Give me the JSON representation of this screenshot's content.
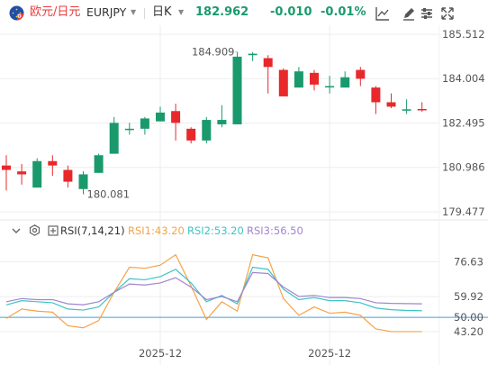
{
  "header": {
    "symbol_name": "欧元/日元",
    "symbol_code": "EURJPY",
    "period": "日K",
    "last_price": "182.962",
    "change": "-0.010",
    "change_pct": "-0.01%",
    "change_color": "#1a9a6c",
    "tools": [
      {
        "name": "indicator-tool",
        "icon": "chart-line-icon"
      },
      {
        "name": "draw-tool",
        "icon": "pen-icon"
      },
      {
        "name": "settings-tool",
        "icon": "sliders-icon"
      },
      {
        "name": "fullscreen-tool",
        "icon": "expand-icon"
      }
    ]
  },
  "price_axis": [
    "185.512",
    "184.004",
    "182.495",
    "180.986",
    "179.477"
  ],
  "annotations": {
    "high": "184.909",
    "low": "180.081"
  },
  "rsi": {
    "collapse_icon": "chevron-down-icon",
    "settings_icon": "gear-icon",
    "label": "RSI(7,14,21)",
    "rsi1_label": "RSI1:43.20",
    "rsi2_label": "RSI2:53.20",
    "rsi3_label": "RSI3:56.50",
    "axis": [
      "76.63",
      "59.92",
      "43.20"
    ],
    "mid_label": "50.00"
  },
  "x_axis": [
    "2025-12",
    "2025-12"
  ],
  "colors": {
    "up": "#1a9a6c",
    "down": "#e8282b",
    "rsi1": "#f5a34a",
    "rsi2": "#3ec3c5",
    "rsi3": "#a284cf",
    "mid_line": "#3aa0e8",
    "grid": "#eeeeee"
  },
  "chart_data": [
    {
      "type": "candlestick",
      "title": "",
      "ylim": [
        179.477,
        185.512
      ],
      "y_ticks": [
        185.512,
        184.004,
        182.495,
        180.986,
        179.477
      ],
      "annotated_high": 184.909,
      "annotated_low": 180.081,
      "candles": [
        {
          "open": 181.05,
          "close": 180.9,
          "high": 181.4,
          "low": 180.2
        },
        {
          "open": 180.85,
          "close": 180.75,
          "high": 181.1,
          "low": 180.4
        },
        {
          "open": 180.3,
          "close": 181.2,
          "high": 181.3,
          "low": 180.3
        },
        {
          "open": 181.2,
          "close": 181.05,
          "high": 181.4,
          "low": 180.7
        },
        {
          "open": 180.9,
          "close": 180.5,
          "high": 181.05,
          "low": 180.3
        },
        {
          "open": 180.25,
          "close": 180.75,
          "high": 180.85,
          "low": 180.081
        },
        {
          "open": 180.8,
          "close": 181.4,
          "high": 181.45,
          "low": 180.8
        },
        {
          "open": 181.45,
          "close": 182.5,
          "high": 182.7,
          "low": 181.45
        },
        {
          "open": 182.3,
          "close": 182.3,
          "high": 182.5,
          "low": 182.1
        },
        {
          "open": 182.3,
          "close": 182.65,
          "high": 182.7,
          "low": 182.1
        },
        {
          "open": 182.55,
          "close": 182.85,
          "high": 183.05,
          "low": 182.55
        },
        {
          "open": 182.9,
          "close": 182.5,
          "high": 183.15,
          "low": 181.9
        },
        {
          "open": 182.3,
          "close": 181.9,
          "high": 182.35,
          "low": 181.8
        },
        {
          "open": 181.9,
          "close": 182.6,
          "high": 182.7,
          "low": 181.8
        },
        {
          "open": 182.45,
          "close": 182.6,
          "high": 183.1,
          "low": 182.35
        },
        {
          "open": 182.45,
          "close": 184.75,
          "high": 184.909,
          "low": 182.45
        },
        {
          "open": 184.8,
          "close": 184.85,
          "high": 184.909,
          "low": 184.6
        },
        {
          "open": 184.7,
          "close": 184.4,
          "high": 184.8,
          "low": 183.5
        },
        {
          "open": 184.3,
          "close": 183.4,
          "high": 184.35,
          "low": 183.4
        },
        {
          "open": 183.7,
          "close": 184.25,
          "high": 184.4,
          "low": 183.7
        },
        {
          "open": 184.2,
          "close": 183.8,
          "high": 184.3,
          "low": 183.6
        },
        {
          "open": 183.75,
          "close": 183.75,
          "high": 184.1,
          "low": 183.5
        },
        {
          "open": 183.7,
          "close": 184.05,
          "high": 184.25,
          "low": 183.7
        },
        {
          "open": 184.3,
          "close": 184.0,
          "high": 184.4,
          "low": 183.75
        },
        {
          "open": 183.7,
          "close": 183.2,
          "high": 183.75,
          "low": 182.8
        },
        {
          "open": 183.2,
          "close": 183.05,
          "high": 183.5,
          "low": 183.0
        },
        {
          "open": 182.96,
          "close": 182.96,
          "high": 183.3,
          "low": 182.8
        },
        {
          "open": 182.97,
          "close": 182.962,
          "high": 183.2,
          "low": 182.88
        }
      ]
    },
    {
      "type": "line",
      "title": "RSI(7,14,21)",
      "ylim": [
        38,
        82
      ],
      "y_ticks": [
        76.63,
        59.92,
        43.2
      ],
      "reference_line": 50.0,
      "series": [
        {
          "name": "RSI1",
          "values": [
            49.5,
            54.0,
            53.0,
            52.5,
            46.0,
            45.0,
            48.5,
            62.0,
            74.0,
            73.5,
            75.0,
            80.0,
            65.0,
            49.0,
            57.5,
            53.0,
            80.0,
            78.5,
            59.0,
            51.0,
            55.0,
            52.0,
            52.5,
            51.0,
            44.5,
            43.2,
            43.2,
            43.2
          ]
        },
        {
          "name": "RSI2",
          "values": [
            56.0,
            58.0,
            57.5,
            57.0,
            54.0,
            53.5,
            55.0,
            62.0,
            68.5,
            68.0,
            69.5,
            73.0,
            66.5,
            57.5,
            60.5,
            56.5,
            74.0,
            73.0,
            63.5,
            58.5,
            59.5,
            58.0,
            58.0,
            57.0,
            54.5,
            53.7,
            53.3,
            53.2
          ]
        },
        {
          "name": "RSI3",
          "values": [
            57.5,
            59.0,
            58.5,
            58.5,
            56.5,
            56.0,
            57.5,
            62.0,
            66.0,
            65.5,
            66.5,
            69.0,
            64.5,
            58.5,
            60.0,
            57.5,
            71.5,
            71.0,
            64.5,
            60.0,
            60.5,
            59.5,
            59.5,
            59.0,
            57.0,
            56.7,
            56.6,
            56.5
          ]
        }
      ]
    }
  ]
}
